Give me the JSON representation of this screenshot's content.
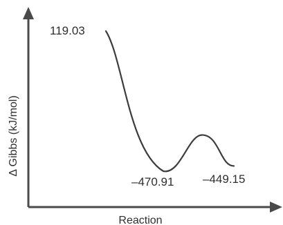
{
  "chart_data": {
    "type": "line",
    "xlabel": "Reaction",
    "ylabel": "Δ Gibbs (kJ/mol)",
    "series": [
      {
        "points": [
          {
            "x": 0,
            "y": 119.03
          },
          {
            "x": 1,
            "y": -470.91
          },
          {
            "x": 2,
            "y": -318.5
          },
          {
            "x": 3,
            "y": -449.15
          }
        ]
      }
    ],
    "data_labels": [
      "119.03",
      "–470.91",
      "–449.15"
    ],
    "grid": false,
    "legend": "none"
  }
}
